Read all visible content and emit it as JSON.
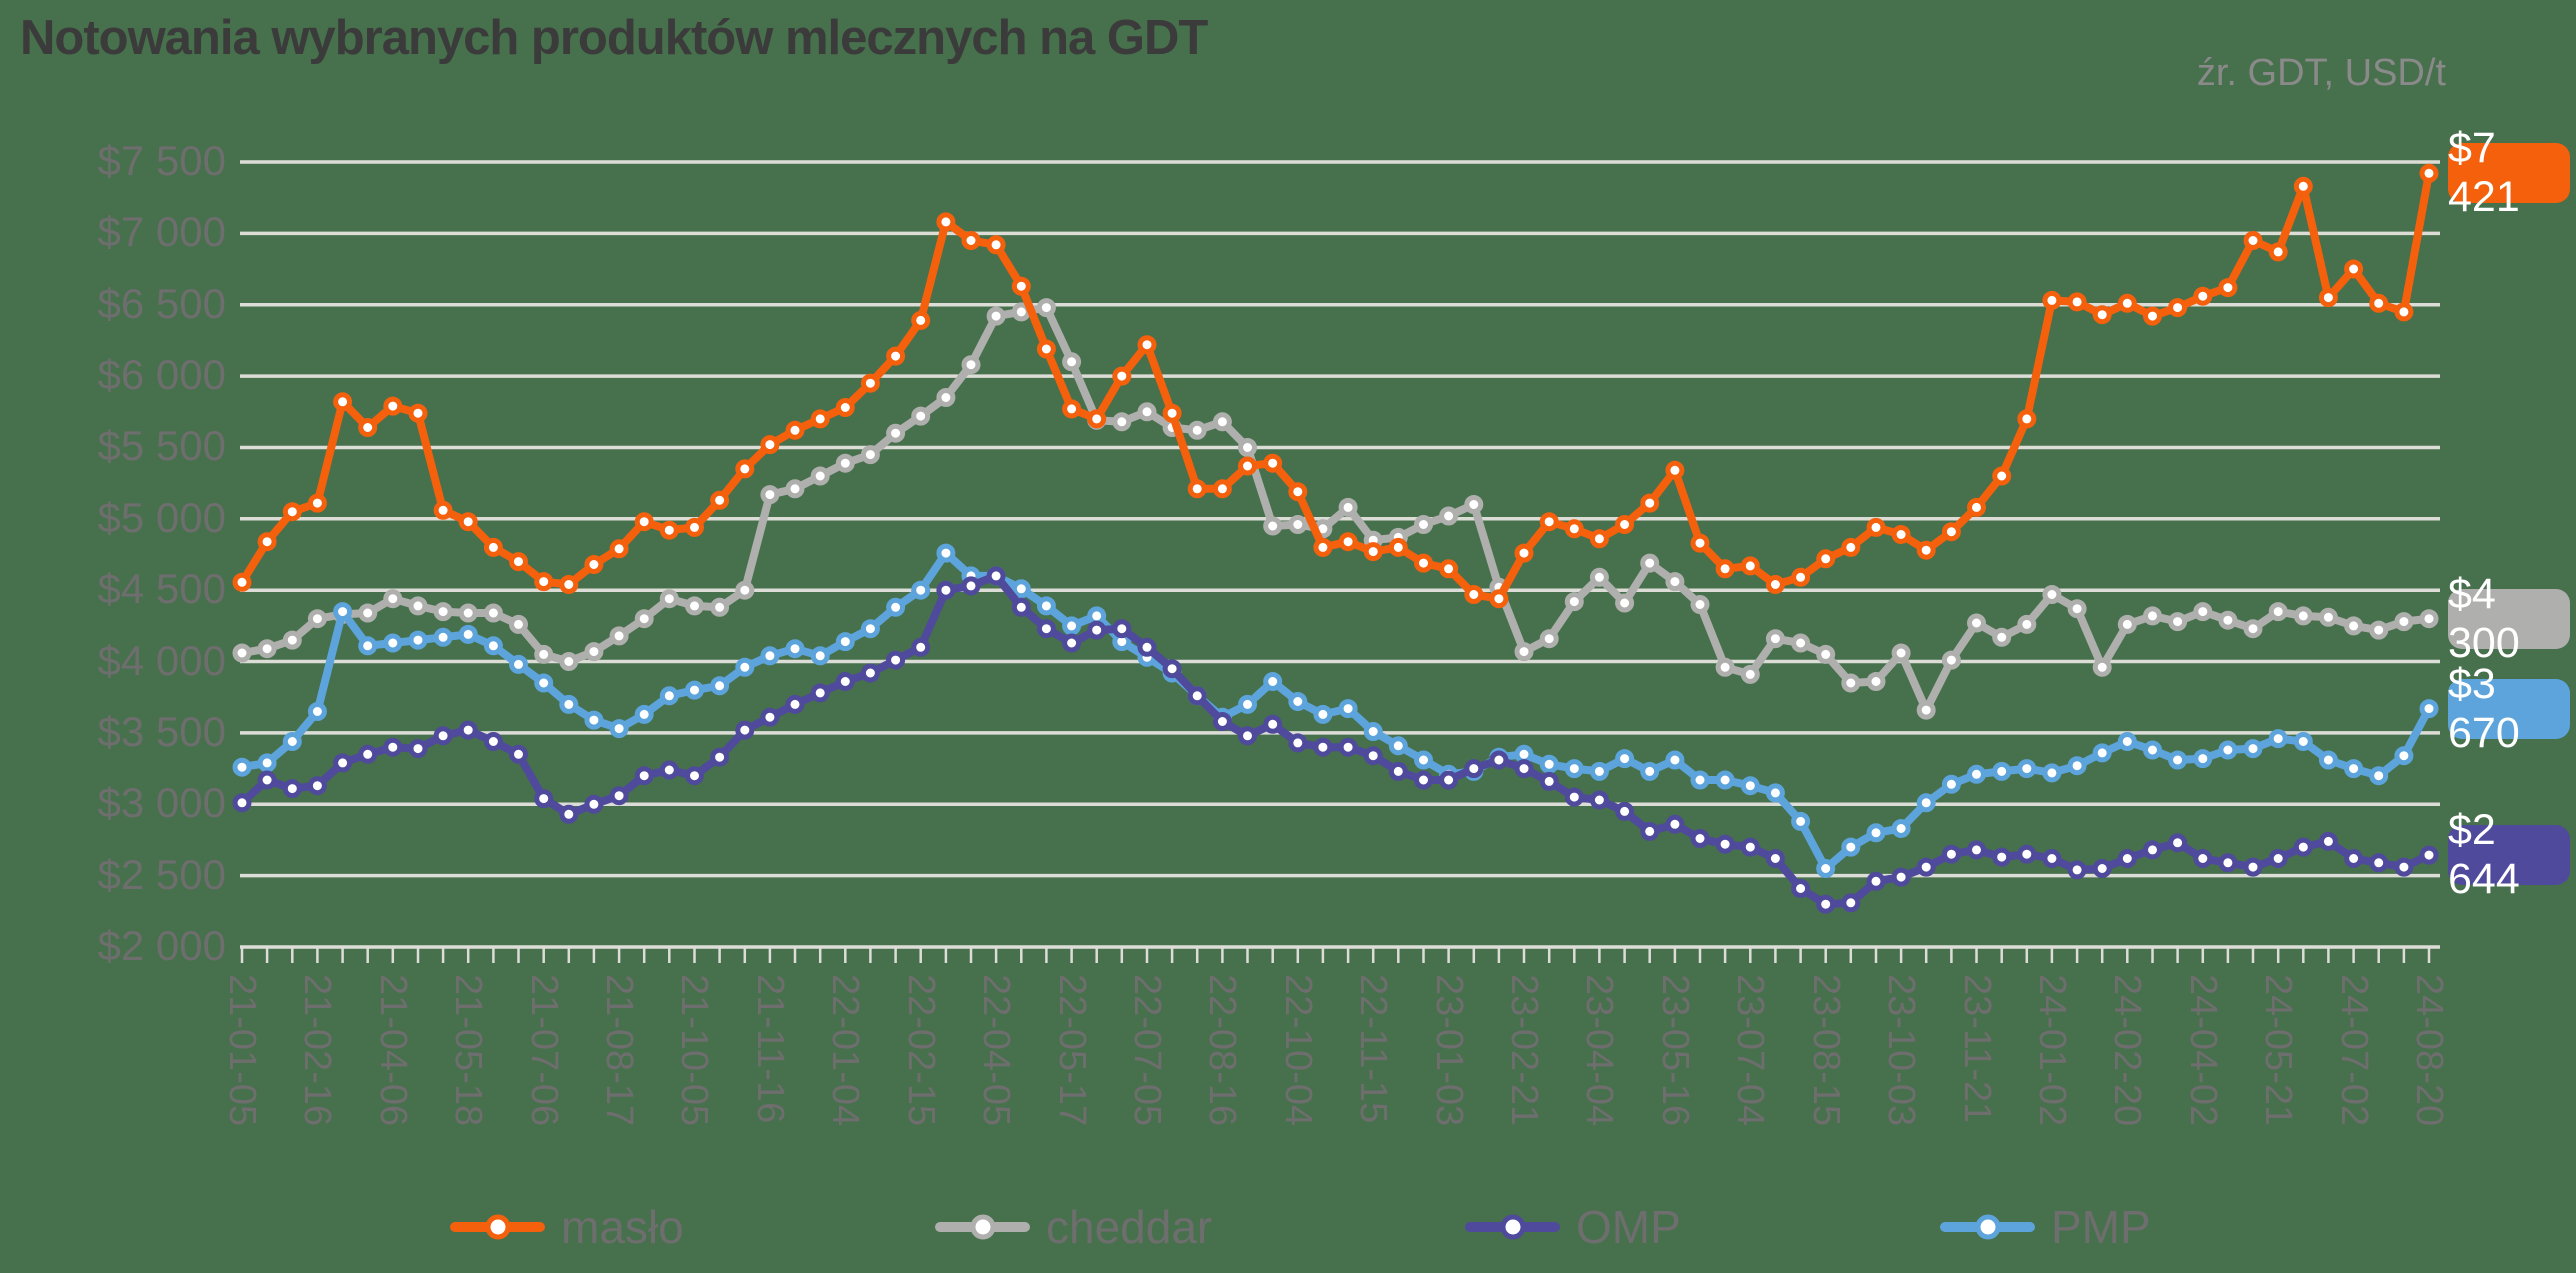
{
  "title": "Notowania wybranych produktów mlecznych na GDT",
  "source_note": "źr. GDT, USD/t",
  "colors": {
    "background": "#47704C",
    "grid": "#DDDDD8",
    "title_text": "#3B3B3B",
    "axis_text": "#6E6E6E",
    "source_text": "#8A8A8A",
    "point_fill": "#FFFFFF"
  },
  "chart_data": {
    "type": "line",
    "title": "Notowania wybranych produktów mlecznych na GDT",
    "unit": "USD/t",
    "legend_position": "bottom",
    "grid": true,
    "y_axis": {
      "min": 2000,
      "max": 7500,
      "step": 500,
      "tick_labels": [
        "$7 500",
        "$7 000",
        "$6 500",
        "$6 000",
        "$5 500",
        "$5 000",
        "$4 500",
        "$4 000",
        "$3 500",
        "$3 000",
        "$2 500",
        "$2 000"
      ]
    },
    "label_stride": 3,
    "x_tick_labels": [
      "21-01-05",
      "21-02-16",
      "21-04-06",
      "21-05-18",
      "21-07-06",
      "21-08-17",
      "21-10-05",
      "21-11-16",
      "22-01-04",
      "22-02-15",
      "22-04-05",
      "22-05-17",
      "22-07-05",
      "22-08-16",
      "22-10-04",
      "22-11-15",
      "23-01-03",
      "23-02-21",
      "23-04-04",
      "23-05-16",
      "23-07-04",
      "23-08-15",
      "23-10-03",
      "23-11-21",
      "24-01-02",
      "24-02-20",
      "24-04-02",
      "24-05-21",
      "24-07-02",
      "24-08-20"
    ],
    "series": [
      {
        "name": "masło",
        "id": "maslo",
        "color": "#F4600C",
        "end_label": "$7 421",
        "end_value": 7421,
        "values": [
          4555,
          4840,
          5050,
          5110,
          5820,
          5640,
          5790,
          5740,
          5060,
          4980,
          4800,
          4700,
          4560,
          4540,
          4680,
          4790,
          4980,
          4920,
          4940,
          5130,
          5350,
          5520,
          5620,
          5700,
          5780,
          5950,
          6140,
          6390,
          7080,
          6950,
          6920,
          6630,
          6190,
          5770,
          5700,
          6000,
          6220,
          5740,
          5210,
          5210,
          5370,
          5390,
          5190,
          4800,
          4840,
          4770,
          4800,
          4690,
          4650,
          4470,
          4440,
          4760,
          4980,
          4930,
          4860,
          4960,
          5110,
          5340,
          4830,
          4650,
          4670,
          4540,
          4590,
          4720,
          4800,
          4940,
          4890,
          4780,
          4910,
          5080,
          5300,
          5700,
          6530,
          6520,
          6430,
          6510,
          6420,
          6480,
          6560,
          6620,
          6950,
          6870,
          7330,
          6550,
          6750,
          6510,
          6450,
          7421
        ]
      },
      {
        "name": "cheddar",
        "id": "cheddar",
        "color": "#AFAFAE",
        "end_label": "$4 300",
        "end_value": 4300,
        "values": [
          4060,
          4090,
          4150,
          4300,
          4330,
          4340,
          4440,
          4390,
          4350,
          4340,
          4340,
          4260,
          4050,
          4000,
          4070,
          4180,
          4300,
          4440,
          4390,
          4380,
          4500,
          5170,
          5210,
          5300,
          5390,
          5450,
          5600,
          5720,
          5850,
          6080,
          6420,
          6450,
          6480,
          6100,
          5690,
          5680,
          5750,
          5640,
          5620,
          5680,
          5500,
          4950,
          4960,
          4930,
          5080,
          4850,
          4870,
          4960,
          5020,
          5100,
          4520,
          4070,
          4160,
          4420,
          4590,
          4410,
          4690,
          4560,
          4400,
          3960,
          3910,
          4160,
          4130,
          4050,
          3850,
          3860,
          4060,
          3660,
          4010,
          4270,
          4170,
          4260,
          4470,
          4370,
          3960,
          4260,
          4320,
          4280,
          4350,
          4290,
          4230,
          4350,
          4320,
          4310,
          4250,
          4220,
          4280,
          4300
        ]
      },
      {
        "name": "OMP",
        "id": "omp",
        "color": "#4F4A9C",
        "end_label": "$2 644",
        "end_value": 2644,
        "values": [
          3010,
          3170,
          3110,
          3130,
          3290,
          3350,
          3400,
          3390,
          3480,
          3520,
          3440,
          3350,
          3040,
          2930,
          3000,
          3060,
          3200,
          3240,
          3200,
          3330,
          3520,
          3610,
          3700,
          3780,
          3860,
          3920,
          4010,
          4100,
          4500,
          4530,
          4600,
          4380,
          4230,
          4130,
          4220,
          4230,
          4100,
          3950,
          3760,
          3580,
          3480,
          3560,
          3430,
          3400,
          3400,
          3340,
          3230,
          3170,
          3170,
          3250,
          3310,
          3250,
          3160,
          3050,
          3030,
          2950,
          2810,
          2860,
          2760,
          2720,
          2700,
          2620,
          2410,
          2300,
          2310,
          2460,
          2490,
          2560,
          2650,
          2680,
          2630,
          2650,
          2620,
          2540,
          2550,
          2620,
          2680,
          2730,
          2620,
          2590,
          2560,
          2620,
          2700,
          2740,
          2620,
          2590,
          2560,
          2644
        ]
      },
      {
        "name": "PMP",
        "id": "pmp",
        "color": "#5CA4DB",
        "end_label": "$3 670",
        "end_value": 3670,
        "values": [
          3260,
          3290,
          3440,
          3650,
          4350,
          4110,
          4130,
          4150,
          4170,
          4190,
          4110,
          3980,
          3850,
          3700,
          3590,
          3530,
          3630,
          3760,
          3800,
          3830,
          3960,
          4040,
          4090,
          4040,
          4140,
          4230,
          4380,
          4500,
          4760,
          4600,
          4600,
          4510,
          4390,
          4250,
          4320,
          4140,
          4030,
          3920,
          3760,
          3610,
          3700,
          3860,
          3720,
          3630,
          3670,
          3510,
          3410,
          3310,
          3210,
          3230,
          3330,
          3350,
          3280,
          3250,
          3230,
          3320,
          3230,
          3310,
          3170,
          3170,
          3130,
          3080,
          2880,
          2550,
          2700,
          2800,
          2830,
          3010,
          3140,
          3210,
          3230,
          3250,
          3220,
          3270,
          3360,
          3440,
          3380,
          3310,
          3320,
          3380,
          3390,
          3460,
          3440,
          3310,
          3250,
          3200,
          3340,
          3670
        ]
      }
    ]
  }
}
